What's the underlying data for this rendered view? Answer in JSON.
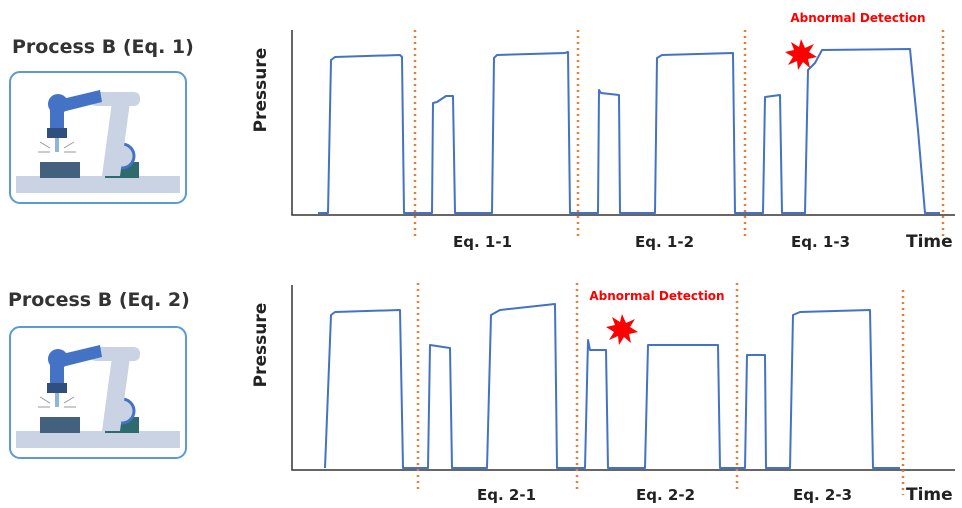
{
  "panels": [
    {
      "title": "Process B (Eq. 1)",
      "y_label": "Pressure",
      "x_label": "Time",
      "segments": [
        "Eq. 1-1",
        "Eq. 1-2",
        "Eq. 1-3"
      ],
      "annotation": "Abnormal Detection"
    },
    {
      "title": "Process B (Eq. 2)",
      "y_label": "Pressure",
      "x_label": "Time",
      "segments": [
        "Eq. 2-1",
        "Eq. 2-2",
        "Eq. 2-3"
      ],
      "annotation": "Abnormal Detection"
    }
  ]
}
